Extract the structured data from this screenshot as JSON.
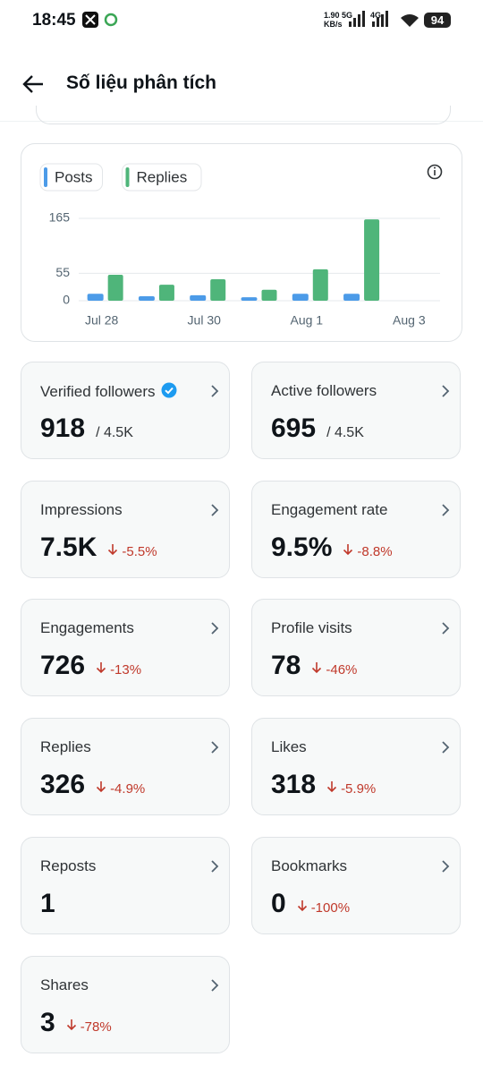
{
  "status_bar": {
    "time": "18:45",
    "net_speed": "1.90",
    "net_unit": "KB/s",
    "net1": "5G",
    "net2": "4G",
    "battery": "94"
  },
  "header": {
    "title": "Số liệu phân tích"
  },
  "chart_data": {
    "type": "bar",
    "categories": [
      "Jul 28",
      null,
      "Jul 30",
      null,
      "Aug 1",
      null,
      "Aug 3"
    ],
    "series": [
      {
        "name": "Posts",
        "color": "#4c9be8",
        "values": [
          14,
          9,
          11,
          7,
          14,
          14,
          null
        ]
      },
      {
        "name": "Replies",
        "color": "#4fb57a",
        "values": [
          52,
          32,
          43,
          22,
          63,
          163,
          null
        ]
      }
    ],
    "ylim": [
      0,
      165
    ],
    "yticks": [
      0,
      55,
      165
    ],
    "grid": true
  },
  "cards": [
    {
      "label": "Verified followers",
      "value": "918",
      "total": "/ 4.5K",
      "verified": true
    },
    {
      "label": "Active followers",
      "value": "695",
      "total": "/ 4.5K"
    },
    {
      "label": "Impressions",
      "value": "7.5K",
      "change": "-5.5%"
    },
    {
      "label": "Engagement rate",
      "value": "9.5%",
      "change": "-8.8%"
    },
    {
      "label": "Engagements",
      "value": "726",
      "change": "-13%"
    },
    {
      "label": "Profile visits",
      "value": "78",
      "change": "-46%"
    },
    {
      "label": "Replies",
      "value": "326",
      "change": "-4.9%"
    },
    {
      "label": "Likes",
      "value": "318",
      "change": "-5.9%"
    },
    {
      "label": "Reposts",
      "value": "1"
    },
    {
      "label": "Bookmarks",
      "value": "0",
      "change": "-100%"
    },
    {
      "label": "Shares",
      "value": "3",
      "change": "-78%"
    }
  ]
}
